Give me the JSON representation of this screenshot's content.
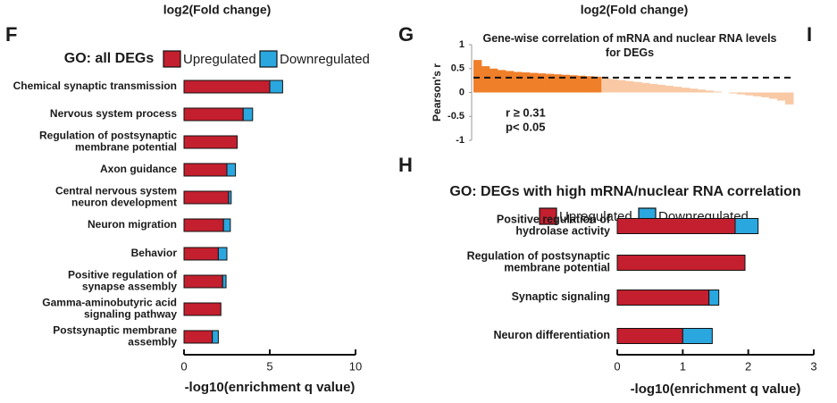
{
  "cropped_labels": [
    "log2(Fold change)",
    "log2(Fold change)"
  ],
  "panel_labels": [
    "F",
    "G",
    "H",
    "I"
  ],
  "chart_data": [
    {
      "type": "bar",
      "orientation": "horizontal",
      "stacked": true,
      "title": "GO: all DEGs",
      "x_label": "-log10(enrichment q value)",
      "categories": [
        [
          "Chemical synaptic transmission"
        ],
        [
          "Nervous system process"
        ],
        [
          "Regulation of postsynaptic",
          "membrane potential"
        ],
        [
          "Axon guidance"
        ],
        [
          "Central nervous system",
          "neuron development"
        ],
        [
          "Neuron migration"
        ],
        [
          "Behavior"
        ],
        [
          "Positive regulation of",
          "synapse assembly"
        ],
        [
          "Gamma-aminobutyric acid",
          "signaling pathway"
        ],
        [
          "Postsynaptic membrane",
          "assembly"
        ]
      ],
      "series": [
        {
          "name": "Upregulated",
          "color": "#c41f2e",
          "values": [
            5.0,
            3.45,
            3.1,
            2.5,
            2.6,
            2.3,
            2.0,
            2.25,
            2.15,
            1.65
          ]
        },
        {
          "name": "Downregulated",
          "color": "#2aa7df",
          "values": [
            0.75,
            0.55,
            0,
            0.5,
            0.15,
            0.4,
            0.5,
            0.2,
            0,
            0.35
          ]
        }
      ],
      "xlim": [
        0,
        10
      ],
      "xticks": [
        0,
        5,
        10
      ]
    },
    {
      "type": "bar",
      "orientation": "vertical",
      "title": [
        "Gene-wise correlation of mRNA and nuclear RNA levels",
        "for DEGs"
      ],
      "y_label": "Pearson's r",
      "values": [
        0.68,
        0.55,
        0.5,
        0.47,
        0.45,
        0.43,
        0.42,
        0.41,
        0.4,
        0.39,
        0.38,
        0.37,
        0.36,
        0.35,
        0.34,
        0.33,
        0.3,
        0.28,
        0.26,
        0.24,
        0.22,
        0.2,
        0.18,
        0.16,
        0.14,
        0.12,
        0.1,
        0.08,
        0.06,
        0.04,
        0.02,
        0,
        -0.02,
        -0.04,
        -0.06,
        -0.08,
        -0.1,
        -0.13,
        -0.17,
        -0.25
      ],
      "color": "#f07f2a",
      "below_color": "#f9c9a5",
      "threshold": 0.31,
      "annotations": [
        "r ≥ 0.31",
        "p< 0.05"
      ],
      "ylim": [
        -1,
        1
      ],
      "yticks": [
        -1,
        -0.5,
        0,
        0.5,
        1
      ]
    },
    {
      "type": "bar",
      "orientation": "horizontal",
      "stacked": true,
      "title": "GO: DEGs with high mRNA/nuclear RNA correlation",
      "x_label": "-log10(enrichment q value)",
      "categories": [
        [
          "Positive regulation of",
          "hydrolase activity"
        ],
        [
          "Regulation of postsynaptic",
          "membrane potential"
        ],
        [
          "Synaptic signaling"
        ],
        [
          "Neuron differentiation"
        ]
      ],
      "series": [
        {
          "name": "Upregulated",
          "color": "#c41f2e",
          "values": [
            1.8,
            1.95,
            1.4,
            1.0
          ]
        },
        {
          "name": "Downregulated",
          "color": "#2aa7df",
          "values": [
            0.35,
            0,
            0.15,
            0.45
          ]
        }
      ],
      "xlim": [
        0,
        3
      ],
      "xticks": [
        0,
        1,
        2,
        3
      ]
    }
  ]
}
